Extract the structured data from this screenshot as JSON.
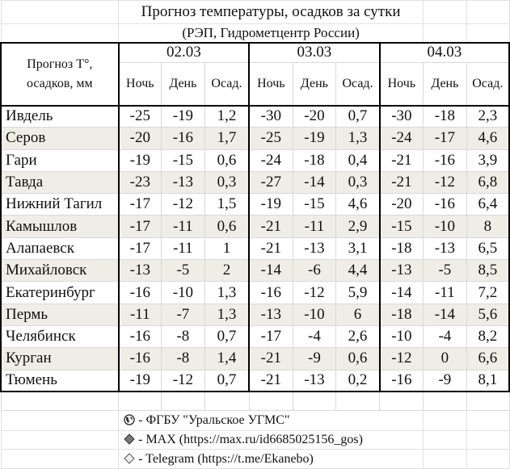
{
  "title": "Прогноз температуры, осадков за сутки",
  "subtitle": "(РЭП, Гидрометцентр России)",
  "corner_label_line1": "Прогноз Т°,",
  "corner_label_line2": "осадков, мм",
  "dates": [
    "02.03",
    "03.03",
    "04.03"
  ],
  "subheaders": [
    "Ночь",
    "День",
    "Осад."
  ],
  "rows": [
    {
      "city": "Ивдель",
      "values": [
        "-25",
        "-19",
        "1,2",
        "-30",
        "-20",
        "0,7",
        "-30",
        "-18",
        "2,3"
      ]
    },
    {
      "city": "Серов",
      "values": [
        "-20",
        "-16",
        "1,7",
        "-25",
        "-19",
        "1,3",
        "-24",
        "-17",
        "4,6"
      ]
    },
    {
      "city": "Гари",
      "values": [
        "-19",
        "-15",
        "0,6",
        "-24",
        "-18",
        "0,4",
        "-21",
        "-16",
        "3,9"
      ]
    },
    {
      "city": "Тавда",
      "values": [
        "-23",
        "-13",
        "0,3",
        "-27",
        "-14",
        "0,3",
        "-21",
        "-12",
        "6,8"
      ]
    },
    {
      "city": "Нижний Тагил",
      "values": [
        "-17",
        "-12",
        "1,5",
        "-19",
        "-15",
        "4,6",
        "-20",
        "-16",
        "6,4"
      ]
    },
    {
      "city": "Камышлов",
      "values": [
        "-17",
        "-11",
        "0,6",
        "-21",
        "-11",
        "2,9",
        "-15",
        "-10",
        "8"
      ]
    },
    {
      "city": "Алапаевск",
      "values": [
        "-17",
        "-11",
        "1",
        "-21",
        "-13",
        "3,1",
        "-18",
        "-13",
        "6,5"
      ]
    },
    {
      "city": "Михайловск",
      "values": [
        "-13",
        "-5",
        "2",
        "-14",
        "-6",
        "4,4",
        "-13",
        "-5",
        "8,5"
      ]
    },
    {
      "city": "Екатеринбург",
      "values": [
        "-16",
        "-10",
        "1,3",
        "-16",
        "-12",
        "5,9",
        "-14",
        "-11",
        "7,2"
      ]
    },
    {
      "city": "Пермь",
      "values": [
        "-11",
        "-7",
        "1,3",
        "-13",
        "-10",
        "6",
        "-18",
        "-14",
        "5,6"
      ]
    },
    {
      "city": "Челябинск",
      "values": [
        "-16",
        "-8",
        "0,7",
        "-17",
        "-4",
        "2,6",
        "-10",
        "-4",
        "8,2"
      ]
    },
    {
      "city": "Курган",
      "values": [
        "-16",
        "-8",
        "1,4",
        "-21",
        "-9",
        "0,6",
        "-12",
        "0",
        "6,6"
      ]
    },
    {
      "city": "Тюмень",
      "values": [
        "-19",
        "-12",
        "0,7",
        "-21",
        "-13",
        "0,2",
        "-16",
        "-9",
        "8,1"
      ]
    }
  ],
  "footer": [
    {
      "icon": "globe-icon",
      "text": "- ФГБУ \"Уральское УГМС\""
    },
    {
      "icon": "diamond-filled-icon",
      "text": "- MAX (https://max.ru/id6685025156_gos)"
    },
    {
      "icon": "diamond-outline-icon",
      "text": "- Telegram (https://t.me/Ekanebo)"
    }
  ],
  "colors": {
    "alt_row": "#efede6",
    "border": "#000000",
    "grid": "#d9d9d9"
  }
}
